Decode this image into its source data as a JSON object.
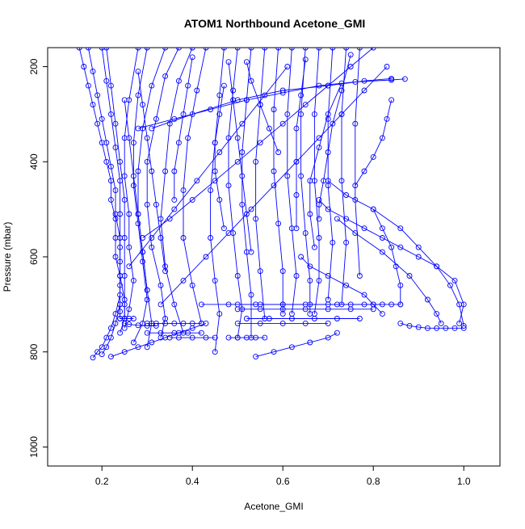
{
  "chart_data": {
    "type": "line",
    "title": "ATOM1 Northbound Acetone_GMI",
    "xlabel": "Acetone_GMI",
    "ylabel": "Pressure (mbar)",
    "xlim": [
      0.08,
      1.08
    ],
    "ylim": [
      1040,
      160
    ],
    "x_ticks": [
      0.2,
      0.4,
      0.6,
      0.8,
      1.0
    ],
    "x_tick_labels": [
      "0.2",
      "0.4",
      "0.6",
      "0.8",
      "1.0"
    ],
    "y_ticks": [
      200,
      400,
      600,
      800,
      1000
    ],
    "y_tick_labels": [
      "200",
      "400",
      "600",
      "800",
      "1000"
    ],
    "grid": false,
    "marker": "open-circle",
    "color": "#0000ff",
    "series": [
      {
        "x": [
          0.15,
          0.16,
          0.17,
          0.18,
          0.19,
          0.2,
          0.21,
          0.22,
          0.22,
          0.23,
          0.23,
          0.23,
          0.24,
          0.24,
          0.23,
          0.22,
          0.21,
          0.2,
          0.19,
          0.18
        ],
        "y": [
          160,
          200,
          240,
          280,
          320,
          360,
          400,
          440,
          480,
          520,
          560,
          600,
          640,
          680,
          720,
          750,
          770,
          790,
          800,
          812
        ]
      },
      {
        "x": [
          0.17,
          0.18,
          0.19,
          0.2,
          0.21,
          0.22,
          0.23,
          0.23,
          0.24,
          0.24,
          0.24,
          0.24,
          0.23,
          0.22,
          0.21,
          0.2
        ],
        "y": [
          160,
          210,
          260,
          310,
          360,
          410,
          460,
          510,
          560,
          610,
          660,
          700,
          740,
          770,
          790,
          805
        ]
      },
      {
        "x": [
          0.2,
          0.21,
          0.22,
          0.23,
          0.24,
          0.24,
          0.24,
          0.24,
          0.25,
          0.25,
          0.24
        ],
        "y": [
          160,
          230,
          300,
          370,
          440,
          510,
          580,
          640,
          690,
          730,
          760
        ]
      },
      {
        "x": [
          0.21,
          0.22,
          0.23,
          0.24,
          0.25,
          0.25,
          0.25,
          0.25,
          0.25
        ],
        "y": [
          160,
          240,
          320,
          400,
          480,
          560,
          640,
          700,
          730
        ]
      },
      {
        "x": [
          0.28,
          0.26,
          0.25,
          0.25,
          0.26,
          0.26,
          0.27,
          0.26,
          0.25
        ],
        "y": [
          160,
          270,
          350,
          430,
          510,
          580,
          650,
          710,
          750
        ]
      },
      {
        "x": [
          0.3,
          0.28,
          0.27,
          0.27,
          0.28,
          0.29,
          0.3,
          0.29,
          0.27
        ],
        "y": [
          160,
          260,
          360,
          450,
          530,
          610,
          690,
          740,
          780
        ]
      },
      {
        "x": [
          0.34,
          0.31,
          0.29,
          0.28,
          0.28,
          0.29,
          0.3,
          0.31,
          0.3
        ],
        "y": [
          160,
          240,
          330,
          420,
          510,
          590,
          670,
          740,
          790
        ]
      },
      {
        "x": [
          0.37,
          0.34,
          0.32,
          0.3,
          0.3,
          0.31,
          0.33,
          0.34,
          0.33
        ],
        "y": [
          160,
          220,
          310,
          400,
          490,
          580,
          660,
          730,
          770
        ]
      },
      {
        "x": [
          0.4,
          0.37,
          0.35,
          0.34,
          0.33,
          0.34,
          0.36,
          0.38
        ],
        "y": [
          160,
          230,
          320,
          420,
          520,
          620,
          700,
          760
        ]
      },
      {
        "x": [
          0.43,
          0.41,
          0.39,
          0.38,
          0.38,
          0.4,
          0.42
        ],
        "y": [
          160,
          250,
          350,
          460,
          560,
          660,
          740
        ]
      },
      {
        "x": [
          0.22,
          0.25,
          0.28,
          0.31,
          0.34,
          0.37,
          0.4,
          0.43
        ],
        "y": [
          810,
          800,
          790,
          780,
          770,
          760,
          750,
          740
        ]
      },
      {
        "x": [
          0.47,
          0.46,
          0.45,
          0.44,
          0.44,
          0.45,
          0.46,
          0.45
        ],
        "y": [
          160,
          260,
          360,
          460,
          560,
          650,
          720,
          800
        ]
      },
      {
        "x": [
          0.5,
          0.49,
          0.48,
          0.48,
          0.49,
          0.5,
          0.51,
          0.5
        ],
        "y": [
          160,
          250,
          350,
          450,
          550,
          640,
          710,
          770
        ]
      },
      {
        "x": [
          0.53,
          0.52,
          0.51,
          0.51,
          0.52,
          0.53,
          0.53
        ],
        "y": [
          160,
          270,
          380,
          490,
          590,
          680,
          770
        ]
      },
      {
        "x": [
          0.56,
          0.55,
          0.54,
          0.54,
          0.55,
          0.56
        ],
        "y": [
          160,
          280,
          400,
          520,
          630,
          730
        ]
      },
      {
        "x": [
          0.59,
          0.58,
          0.58,
          0.59,
          0.6,
          0.6
        ],
        "y": [
          160,
          290,
          420,
          530,
          630,
          720
        ]
      },
      {
        "x": [
          0.62,
          0.61,
          0.61,
          0.62,
          0.63,
          0.62
        ],
        "y": [
          160,
          300,
          430,
          540,
          640,
          720
        ]
      },
      {
        "x": [
          0.65,
          0.64,
          0.64,
          0.65,
          0.66,
          0.66
        ],
        "y": [
          160,
          300,
          430,
          550,
          650,
          720
        ]
      },
      {
        "x": [
          0.68,
          0.67,
          0.67,
          0.68,
          0.68,
          0.67
        ],
        "y": [
          160,
          300,
          440,
          560,
          650,
          720
        ]
      },
      {
        "x": [
          0.71,
          0.7,
          0.7,
          0.71,
          0.7
        ],
        "y": [
          160,
          310,
          450,
          570,
          690
        ]
      },
      {
        "x": [
          0.74,
          0.73,
          0.73,
          0.74,
          0.73
        ],
        "y": [
          160,
          300,
          440,
          570,
          700
        ]
      },
      {
        "x": [
          0.77,
          0.76,
          0.76,
          0.77
        ],
        "y": [
          160,
          320,
          480,
          640
        ]
      },
      {
        "x": [
          0.29,
          0.35,
          0.4,
          0.45,
          0.5,
          0.55,
          0.6,
          0.65,
          0.7,
          0.75,
          0.8
        ],
        "y": [
          560,
          520,
          480,
          440,
          400,
          360,
          320,
          280,
          240,
          200,
          160
        ]
      },
      {
        "x": [
          0.33,
          0.38,
          0.43,
          0.48,
          0.53,
          0.58,
          0.63,
          0.68,
          0.73,
          0.78,
          0.83
        ],
        "y": [
          700,
          650,
          600,
          550,
          500,
          450,
          400,
          350,
          300,
          250,
          200
        ]
      },
      {
        "x": [
          0.26,
          0.31,
          0.36,
          0.41,
          0.46,
          0.51,
          0.56,
          0.61
        ],
        "y": [
          620,
          560,
          500,
          440,
          380,
          320,
          260,
          200
        ]
      },
      {
        "x": [
          0.31,
          0.4,
          0.5,
          0.6,
          0.7,
          0.78,
          0.84
        ],
        "y": [
          330,
          300,
          270,
          250,
          240,
          230,
          225
        ]
      },
      {
        "x": [
          0.28,
          0.36,
          0.44,
          0.52,
          0.6,
          0.68,
          0.76,
          0.84,
          0.87
        ],
        "y": [
          330,
          310,
          290,
          270,
          255,
          240,
          232,
          228,
          226
        ]
      },
      {
        "x": [
          0.5,
          0.55,
          0.6,
          0.65,
          0.7,
          0.75,
          0.8,
          0.84,
          0.86
        ],
        "y": [
          700,
          700,
          700,
          700,
          700,
          700,
          700,
          700,
          700
        ]
      },
      {
        "x": [
          0.42,
          0.48,
          0.54,
          0.6,
          0.66,
          0.72,
          0.78,
          0.82
        ],
        "y": [
          700,
          700,
          700,
          700,
          700,
          700,
          700,
          700
        ]
      },
      {
        "x": [
          0.5,
          0.55,
          0.6,
          0.65,
          0.7,
          0.75,
          0.8
        ],
        "y": [
          710,
          710,
          710,
          710,
          710,
          710,
          710
        ]
      },
      {
        "x": [
          0.52,
          0.57,
          0.62,
          0.67,
          0.72,
          0.77
        ],
        "y": [
          730,
          730,
          730,
          730,
          730,
          730
        ]
      },
      {
        "x": [
          0.5,
          0.55,
          0.6,
          0.65,
          0.7
        ],
        "y": [
          740,
          740,
          740,
          740,
          740
        ]
      },
      {
        "x": [
          0.48,
          0.5,
          0.52,
          0.54,
          0.56
        ],
        "y": [
          770,
          770,
          770,
          770,
          770
        ]
      },
      {
        "x": [
          0.68,
          0.7,
          0.74,
          0.78,
          0.82,
          0.86,
          0.9,
          0.94,
          0.98,
          1.0,
          0.99
        ],
        "y": [
          480,
          500,
          520,
          540,
          560,
          580,
          600,
          620,
          650,
          700,
          740
        ]
      },
      {
        "x": [
          0.7,
          0.74,
          0.8,
          0.86,
          0.9,
          0.94,
          0.97,
          0.99,
          1.0
        ],
        "y": [
          440,
          470,
          500,
          540,
          580,
          620,
          660,
          700,
          745
        ]
      },
      {
        "x": [
          0.72,
          0.76,
          0.82,
          0.88,
          0.92,
          0.94,
          0.95
        ],
        "y": [
          520,
          550,
          590,
          640,
          690,
          720,
          740
        ]
      },
      {
        "x": [
          0.86,
          0.88,
          0.9,
          0.92,
          0.94,
          0.96,
          0.98,
          1.0
        ],
        "y": [
          740,
          745,
          748,
          750,
          750,
          750,
          750,
          750
        ]
      },
      {
        "x": [
          0.64,
          0.66,
          0.7,
          0.74,
          0.78,
          0.8,
          0.82
        ],
        "y": [
          600,
          620,
          640,
          660,
          680,
          700,
          720
        ]
      },
      {
        "x": [
          0.8,
          0.82,
          0.84,
          0.85,
          0.86,
          0.86
        ],
        "y": [
          500,
          540,
          580,
          620,
          660,
          700
        ]
      },
      {
        "x": [
          0.84,
          0.83,
          0.82,
          0.8,
          0.78,
          0.76
        ],
        "y": [
          270,
          310,
          350,
          390,
          420,
          450
        ]
      },
      {
        "x": [
          0.75,
          0.73,
          0.71,
          0.7,
          0.69,
          0.68,
          0.68
        ],
        "y": [
          175,
          250,
          320,
          380,
          440,
          490,
          520
        ]
      },
      {
        "x": [
          0.65,
          0.64,
          0.63,
          0.63,
          0.63,
          0.63
        ],
        "y": [
          185,
          260,
          330,
          400,
          470,
          540
        ]
      },
      {
        "x": [
          0.73,
          0.7,
          0.68,
          0.66,
          0.66,
          0.67
        ],
        "y": [
          235,
          300,
          370,
          440,
          510,
          580
        ]
      },
      {
        "x": [
          0.54,
          0.58,
          0.62,
          0.66,
          0.7,
          0.72
        ],
        "y": [
          810,
          800,
          790,
          780,
          770,
          760
        ]
      },
      {
        "x": [
          0.24,
          0.24,
          0.24,
          0.24,
          0.25,
          0.26,
          0.27
        ],
        "y": [
          700,
          715,
          730,
          730,
          730,
          730,
          730
        ]
      },
      {
        "x": [
          0.3,
          0.32,
          0.34,
          0.36,
          0.38,
          0.4,
          0.42
        ],
        "y": [
          740,
          740,
          740,
          740,
          740,
          740,
          740
        ]
      },
      {
        "x": [
          0.3,
          0.33,
          0.36,
          0.39,
          0.42
        ],
        "y": [
          760,
          760,
          760,
          760,
          760
        ]
      },
      {
        "x": [
          0.35,
          0.37,
          0.4,
          0.43,
          0.45
        ],
        "y": [
          770,
          770,
          770,
          770,
          770
        ]
      },
      {
        "x": [
          0.25,
          0.26,
          0.28,
          0.3,
          0.32
        ],
        "y": [
          740,
          742,
          744,
          745,
          745
        ]
      },
      {
        "x": [
          0.25,
          0.26,
          0.27,
          0.28,
          0.29,
          0.3
        ],
        "y": [
          270,
          350,
          430,
          510,
          590,
          670
        ]
      },
      {
        "x": [
          0.28,
          0.29,
          0.3,
          0.31,
          0.32,
          0.33,
          0.34
        ],
        "y": [
          210,
          280,
          350,
          420,
          490,
          560,
          630
        ]
      },
      {
        "x": [
          0.4,
          0.39,
          0.38,
          0.37,
          0.36,
          0.36
        ],
        "y": [
          180,
          240,
          300,
          360,
          420,
          480
        ]
      },
      {
        "x": [
          0.47,
          0.46,
          0.45,
          0.45,
          0.46,
          0.47
        ],
        "y": [
          240,
          300,
          360,
          420,
          480,
          540
        ]
      },
      {
        "x": [
          0.48,
          0.49,
          0.5,
          0.51,
          0.52,
          0.53
        ],
        "y": [
          190,
          270,
          350,
          430,
          510,
          590
        ]
      },
      {
        "x": [
          0.52,
          0.53,
          0.55,
          0.57,
          0.59
        ],
        "y": [
          190,
          230,
          280,
          330,
          380
        ]
      }
    ]
  }
}
